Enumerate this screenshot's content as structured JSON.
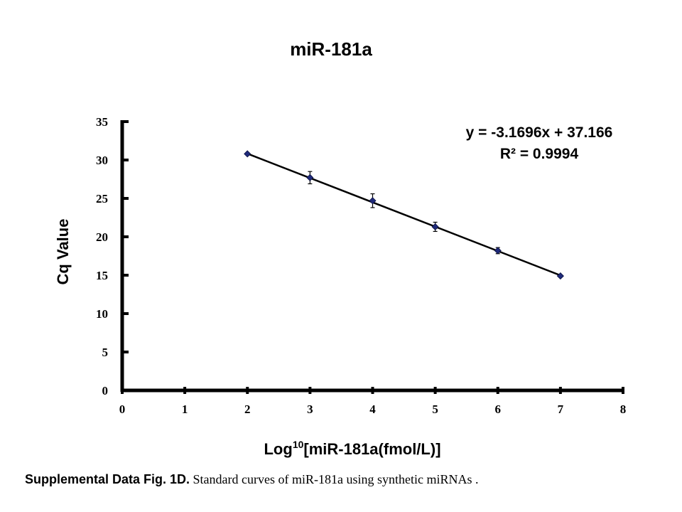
{
  "chart_data": {
    "type": "scatter",
    "title": "miR-181a",
    "xlabel_main": "Log",
    "xlabel_sup": "10",
    "xlabel_rest": "[miR-181a(fmol/L)]",
    "ylabel": "Cq Value",
    "xlim": [
      0,
      8
    ],
    "ylim": [
      0,
      35
    ],
    "xticks": [
      "0",
      "1",
      "2",
      "3",
      "4",
      "5",
      "6",
      "7",
      "8"
    ],
    "yticks": [
      "0",
      "5",
      "10",
      "15",
      "20",
      "25",
      "30",
      "35"
    ],
    "points": [
      {
        "x": 2,
        "y": 30.8,
        "err": 0.1
      },
      {
        "x": 3,
        "y": 27.7,
        "err": 0.8
      },
      {
        "x": 4,
        "y": 24.7,
        "err": 0.9
      },
      {
        "x": 5,
        "y": 21.3,
        "err": 0.6
      },
      {
        "x": 6,
        "y": 18.2,
        "err": 0.4
      },
      {
        "x": 7,
        "y": 14.9,
        "err": 0.1
      }
    ],
    "trendline": {
      "slope": -3.1696,
      "intercept": 37.166,
      "x_range": [
        2,
        7
      ]
    },
    "equation": "y = -3.1696x + 37.166",
    "r_squared": "R² = 0.9994",
    "marker_color": "#1f2a7a",
    "line_color": "#000000"
  },
  "caption": {
    "bold": "Supplemental Data Fig. 1D.",
    "text": " Standard curves of miR-181a using synthetic miRNAs ."
  }
}
